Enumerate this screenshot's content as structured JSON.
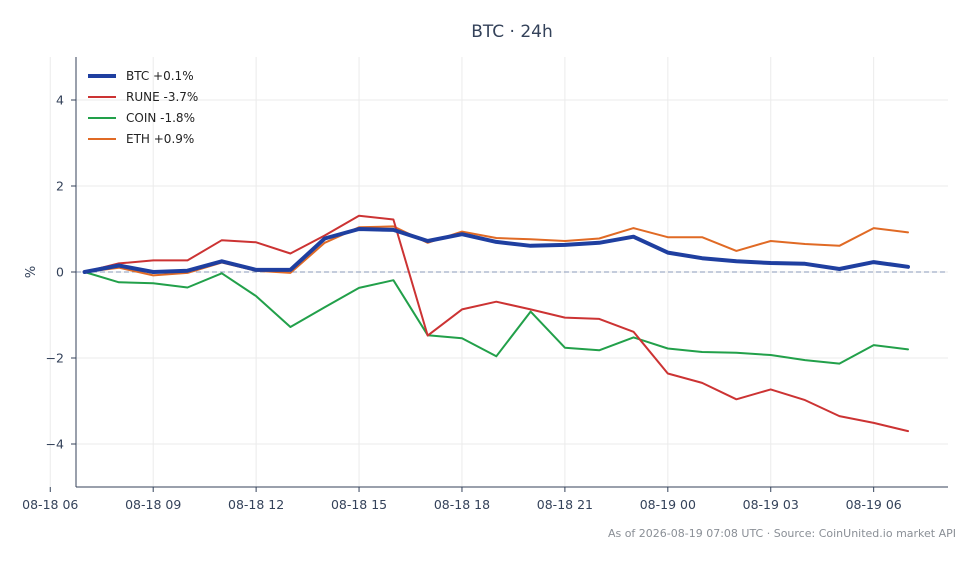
{
  "chart_data": {
    "type": "line",
    "title": "BTC · 24h",
    "ylabel": "%",
    "xlabel": "",
    "ylim": [
      -5,
      5
    ],
    "y_ticks": [
      -4,
      -2,
      0,
      2,
      4
    ],
    "y_tick_labels": [
      "−4",
      "−2",
      "0",
      "2",
      "4"
    ],
    "x_range": [
      "2026-08-18 06:45",
      "2026-08-19 08:10"
    ],
    "x_ticks": [
      {
        "t": "2026-08-18 06:00",
        "label": "08-18 06"
      },
      {
        "t": "2026-08-18 09:00",
        "label": "08-18 09"
      },
      {
        "t": "2026-08-18 12:00",
        "label": "08-18 12"
      },
      {
        "t": "2026-08-18 15:00",
        "label": "08-18 15"
      },
      {
        "t": "2026-08-18 18:00",
        "label": "08-18 18"
      },
      {
        "t": "2026-08-18 21:00",
        "label": "08-18 21"
      },
      {
        "t": "2026-08-19 00:00",
        "label": "08-19 00"
      },
      {
        "t": "2026-08-19 03:00",
        "label": "08-19 03"
      },
      {
        "t": "2026-08-19 06:00",
        "label": "08-19 06"
      }
    ],
    "x": [
      "2026-08-18 07:00",
      "2026-08-18 08:00",
      "2026-08-18 09:00",
      "2026-08-18 10:00",
      "2026-08-18 11:00",
      "2026-08-18 12:00",
      "2026-08-18 13:00",
      "2026-08-18 14:00",
      "2026-08-18 15:00",
      "2026-08-18 16:00",
      "2026-08-18 17:00",
      "2026-08-18 18:00",
      "2026-08-18 19:00",
      "2026-08-18 20:00",
      "2026-08-18 21:00",
      "2026-08-18 22:00",
      "2026-08-18 23:00",
      "2026-08-19 00:00",
      "2026-08-19 01:00",
      "2026-08-19 02:00",
      "2026-08-19 03:00",
      "2026-08-19 04:00",
      "2026-08-19 05:00",
      "2026-08-19 06:00",
      "2026-08-19 07:00"
    ],
    "grid": true,
    "zero_line": "dashed",
    "legend_position": "top-left",
    "series": [
      {
        "name": "BTC +0.1%",
        "color": "#1f3fa0",
        "width": 4,
        "values": [
          0.0,
          0.15,
          0.0,
          0.03,
          0.25,
          0.05,
          0.05,
          0.78,
          1.0,
          0.98,
          0.72,
          0.88,
          0.7,
          0.61,
          0.63,
          0.68,
          0.82,
          0.45,
          0.32,
          0.25,
          0.21,
          0.19,
          0.07,
          0.23,
          0.12
        ]
      },
      {
        "name": "RUNE -3.7%",
        "color": "#cc3333",
        "width": 2,
        "values": [
          0.0,
          0.2,
          0.27,
          0.27,
          0.74,
          0.69,
          0.43,
          0.85,
          1.31,
          1.22,
          -1.48,
          -0.87,
          -0.69,
          -0.87,
          -1.06,
          -1.09,
          -1.39,
          -2.36,
          -2.58,
          -2.96,
          -2.73,
          -2.98,
          -3.35,
          -3.51,
          -3.7
        ]
      },
      {
        "name": "COIN -1.8%",
        "color": "#22a04a",
        "width": 2,
        "values": [
          0.0,
          -0.24,
          -0.26,
          -0.36,
          -0.03,
          -0.56,
          -1.28,
          -0.82,
          -0.37,
          -0.19,
          -1.47,
          -1.54,
          -1.96,
          -0.92,
          -1.76,
          -1.82,
          -1.52,
          -1.78,
          -1.86,
          -1.88,
          -1.93,
          -2.05,
          -2.13,
          -1.7,
          -1.8
        ]
      },
      {
        "name": "ETH +0.9%",
        "color": "#e06a25",
        "width": 2,
        "values": [
          0.0,
          0.1,
          -0.08,
          -0.02,
          0.22,
          0.03,
          -0.02,
          0.68,
          1.04,
          1.06,
          0.68,
          0.94,
          0.79,
          0.76,
          0.72,
          0.78,
          1.02,
          0.81,
          0.81,
          0.49,
          0.72,
          0.65,
          0.61,
          1.02,
          0.92
        ]
      }
    ]
  },
  "footer": "As of 2026-08-19 07:08 UTC · Source: CoinUnited.io market API"
}
